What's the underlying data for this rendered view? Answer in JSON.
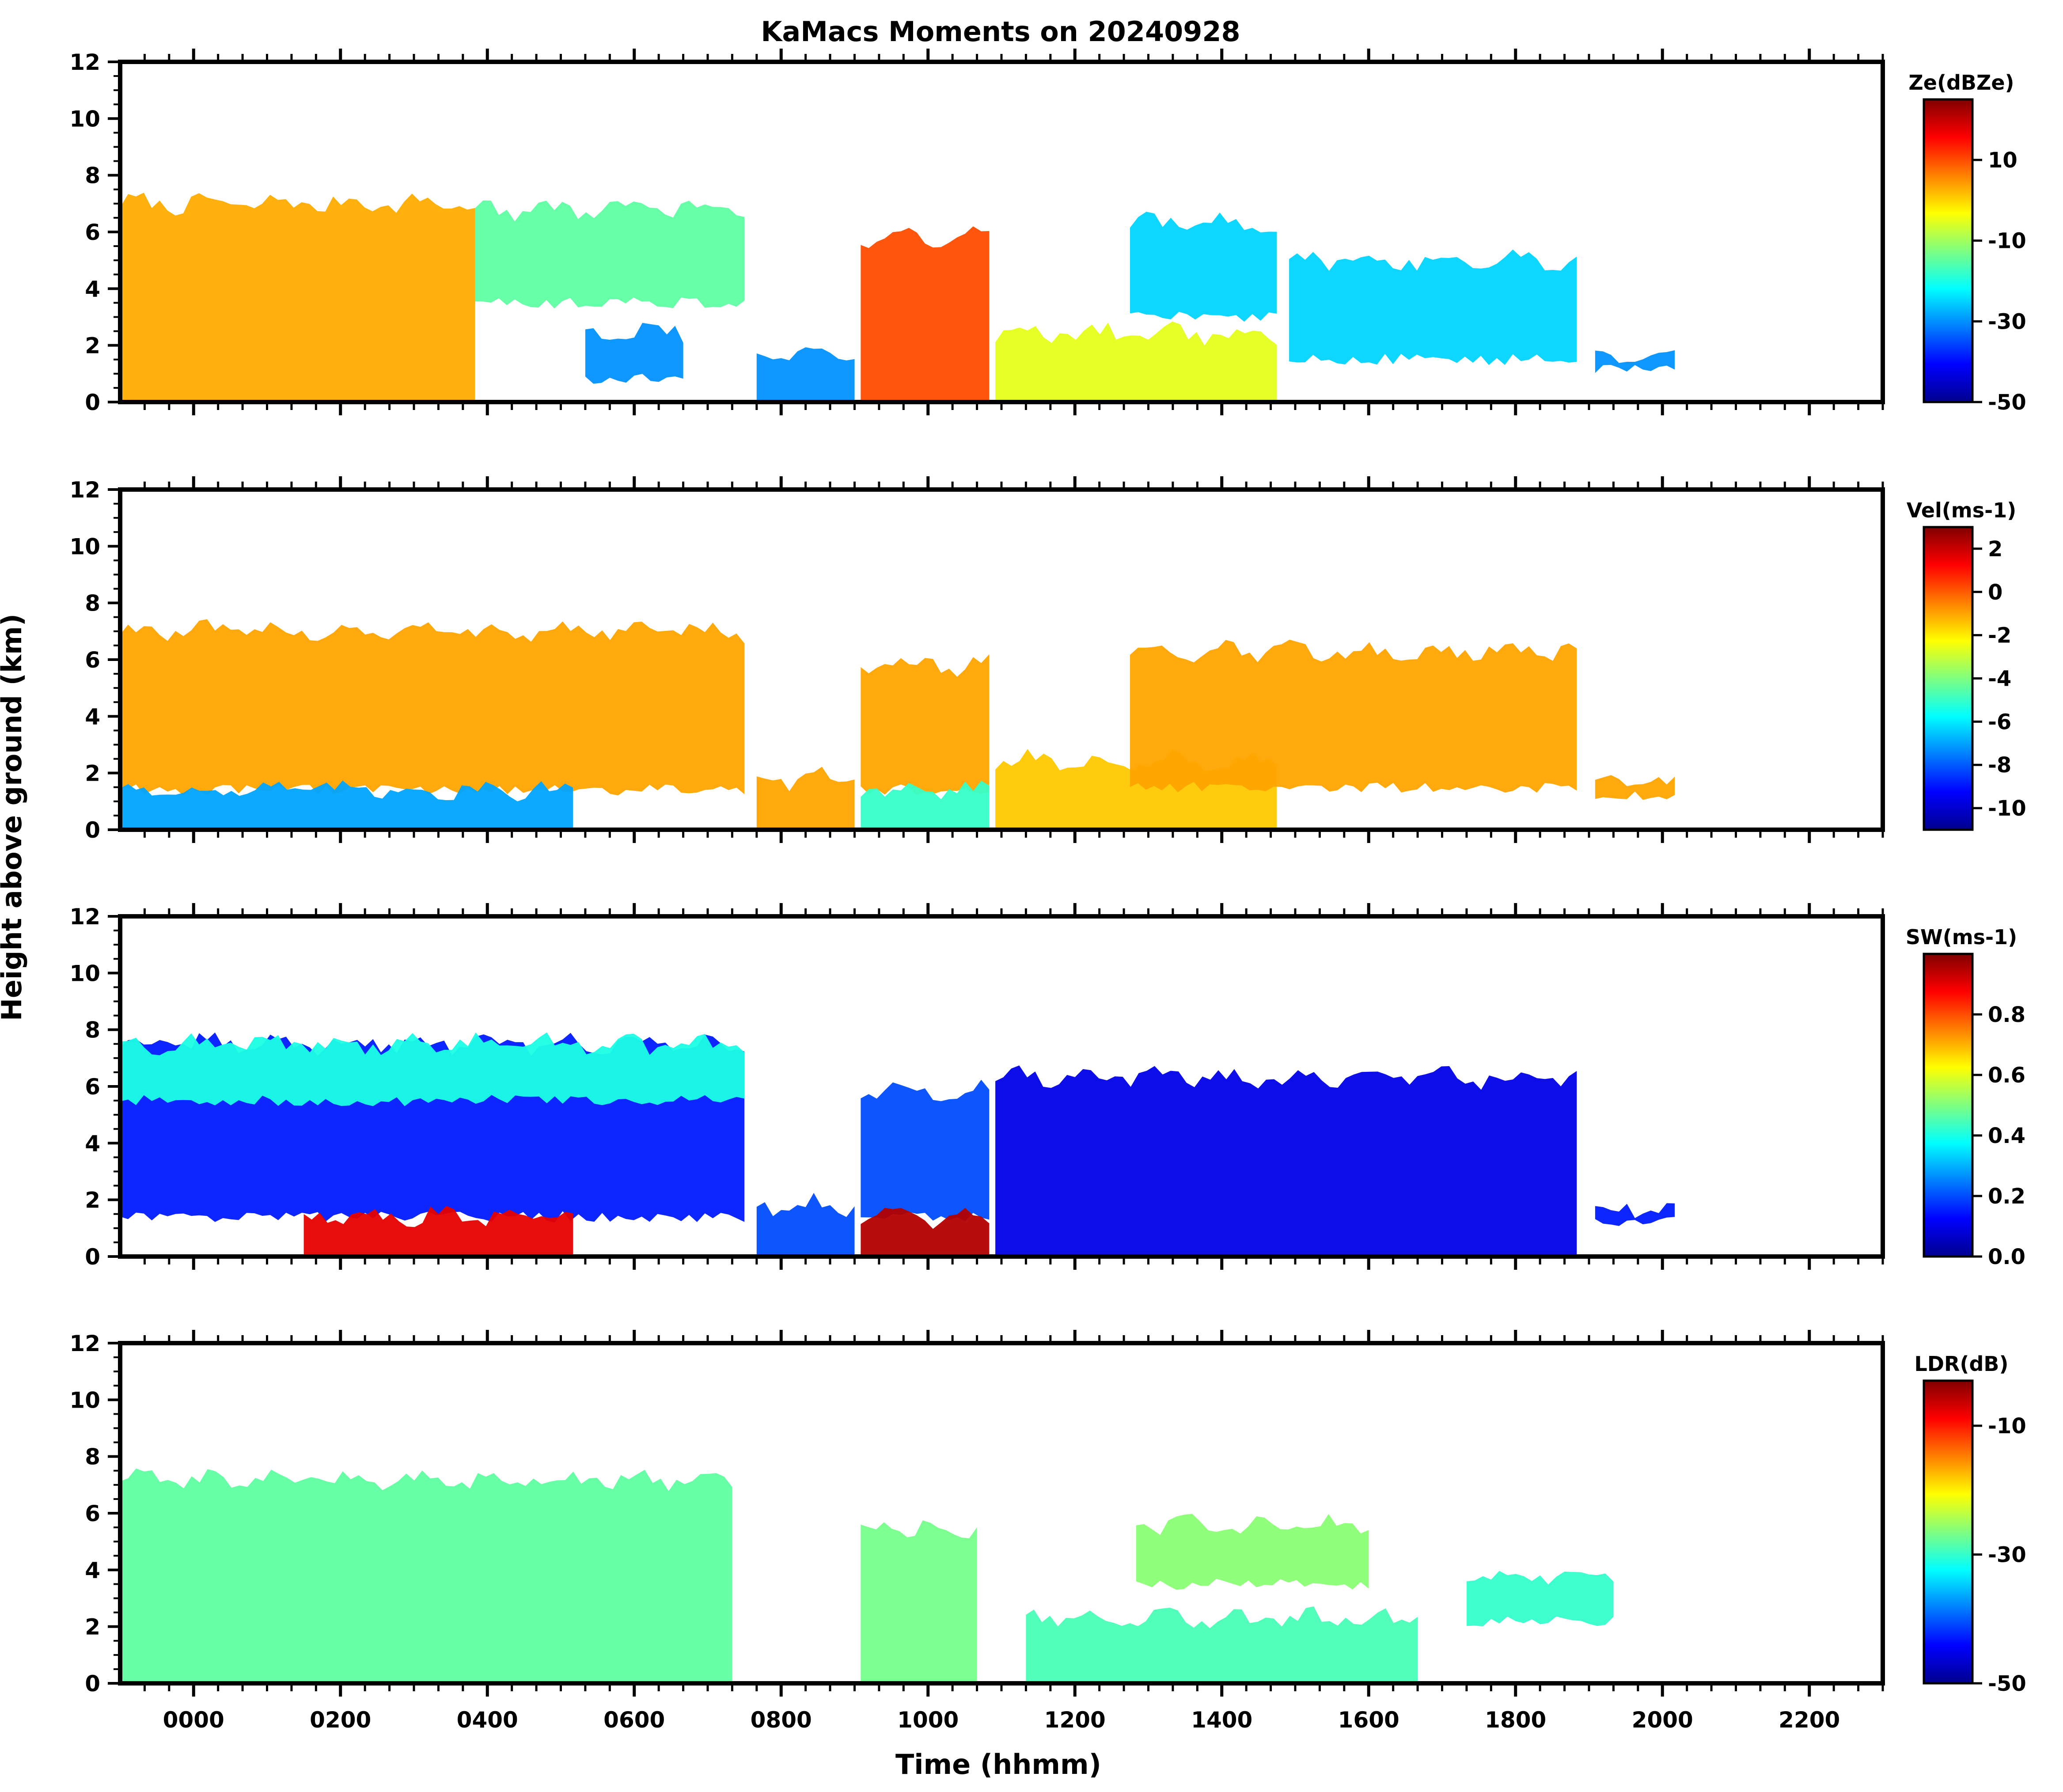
{
  "chart_data": {
    "type": "heatmap",
    "title": "KaMacs Moments on 20240928",
    "xlabel": "Time (hhmm)",
    "ylabel": "Height above ground (km)",
    "x_minutes_range": [
      -60,
      1380
    ],
    "x_ticks": [
      {
        "minutes": 0,
        "label": "0000"
      },
      {
        "minutes": 120,
        "label": "0200"
      },
      {
        "minutes": 240,
        "label": "0400"
      },
      {
        "minutes": 360,
        "label": "0600"
      },
      {
        "minutes": 480,
        "label": "0800"
      },
      {
        "minutes": 600,
        "label": "1000"
      },
      {
        "minutes": 720,
        "label": "1200"
      },
      {
        "minutes": 840,
        "label": "1400"
      },
      {
        "minutes": 960,
        "label": "1600"
      },
      {
        "minutes": 1080,
        "label": "1800"
      },
      {
        "minutes": 1200,
        "label": "2000"
      },
      {
        "minutes": 1320,
        "label": "2200"
      }
    ],
    "ylim": [
      0,
      12
    ],
    "y_ticks": [
      0,
      2,
      4,
      6,
      8,
      10,
      12
    ],
    "panels": [
      {
        "name": "reflectivity",
        "colorbar_label": "Ze(dBZe)",
        "colorbar_range": [
          -50,
          25
        ],
        "colorbar_ticks": [
          10,
          -10,
          -30,
          -50
        ],
        "cloud_regions": [
          {
            "t0": -60,
            "t1": 230,
            "top_km": 7.0,
            "base_km": 0,
            "value": 3
          },
          {
            "t0": 230,
            "t1": 450,
            "top_km": 6.8,
            "base_km": 3.5,
            "value": -15
          },
          {
            "t0": 320,
            "t1": 400,
            "top_km": 2.5,
            "base_km": 0.8,
            "value": -30
          },
          {
            "t0": 460,
            "t1": 540,
            "top_km": 1.8,
            "base_km": 0,
            "value": -30
          },
          {
            "t0": 545,
            "t1": 650,
            "top_km": 5.8,
            "base_km": 0,
            "value": 10
          },
          {
            "t0": 655,
            "t1": 885,
            "top_km": 2.4,
            "base_km": 0,
            "value": -5
          },
          {
            "t0": 765,
            "t1": 885,
            "top_km": 6.3,
            "base_km": 3.0,
            "value": -25
          },
          {
            "t0": 895,
            "t1": 1130,
            "top_km": 5.0,
            "base_km": 1.5,
            "value": -25
          },
          {
            "t0": 1145,
            "t1": 1210,
            "top_km": 1.7,
            "base_km": 1.2,
            "value": -30
          }
        ]
      },
      {
        "name": "velocity",
        "colorbar_label": "Vel(ms-1)",
        "colorbar_range": [
          -11,
          3
        ],
        "colorbar_ticks": [
          2,
          0,
          -2,
          -4,
          -6,
          -8,
          -10
        ],
        "cloud_regions": [
          {
            "t0": -60,
            "t1": 450,
            "top_km": 7.0,
            "base_km": 1.4,
            "value": -1
          },
          {
            "t0": -60,
            "t1": 310,
            "top_km": 1.4,
            "base_km": 0,
            "value": -7
          },
          {
            "t0": 460,
            "t1": 540,
            "top_km": 1.8,
            "base_km": 0,
            "value": -1
          },
          {
            "t0": 545,
            "t1": 650,
            "top_km": 5.8,
            "base_km": 1.4,
            "value": -1
          },
          {
            "t0": 545,
            "t1": 650,
            "top_km": 1.4,
            "base_km": 0,
            "value": -5
          },
          {
            "t0": 655,
            "t1": 885,
            "top_km": 2.4,
            "base_km": 0,
            "value": -1.5
          },
          {
            "t0": 765,
            "t1": 1130,
            "top_km": 6.3,
            "base_km": 1.5,
            "value": -1
          },
          {
            "t0": 1145,
            "t1": 1210,
            "top_km": 1.7,
            "base_km": 1.2,
            "value": -1
          }
        ]
      },
      {
        "name": "spectrum_width",
        "colorbar_label": "SW(ms-1)",
        "colorbar_range": [
          0.0,
          1.0
        ],
        "colorbar_ticks": [
          0.8,
          0.6,
          0.4,
          0.2,
          0.0
        ],
        "cloud_regions": [
          {
            "t0": -60,
            "t1": 450,
            "top_km": 7.5,
            "base_km": 1.4,
            "value": 0.15
          },
          {
            "t0": -60,
            "t1": 450,
            "top_km": 7.5,
            "base_km": 5.5,
            "value": 0.4
          },
          {
            "t0": 90,
            "t1": 310,
            "top_km": 1.4,
            "base_km": 0,
            "value": 0.9
          },
          {
            "t0": 460,
            "t1": 540,
            "top_km": 1.8,
            "base_km": 0,
            "value": 0.2
          },
          {
            "t0": 545,
            "t1": 650,
            "top_km": 5.8,
            "base_km": 1.4,
            "value": 0.2
          },
          {
            "t0": 545,
            "t1": 650,
            "top_km": 1.4,
            "base_km": 0,
            "value": 0.95
          },
          {
            "t0": 655,
            "t1": 1130,
            "top_km": 6.3,
            "base_km": 0,
            "value": 0.1
          },
          {
            "t0": 1145,
            "t1": 1210,
            "top_km": 1.7,
            "base_km": 1.2,
            "value": 0.15
          }
        ]
      },
      {
        "name": "ldr",
        "colorbar_label": "LDR(dB)",
        "colorbar_range": [
          -50,
          -3
        ],
        "colorbar_ticks": [
          -10,
          -30,
          -50
        ],
        "cloud_regions": [
          {
            "t0": -60,
            "t1": 440,
            "top_km": 7.2,
            "base_km": 0,
            "value": -28
          },
          {
            "t0": 545,
            "t1": 640,
            "top_km": 5.5,
            "base_km": 0,
            "value": -27
          },
          {
            "t0": 680,
            "t1": 1000,
            "top_km": 2.3,
            "base_km": 0,
            "value": -29
          },
          {
            "t0": 770,
            "t1": 960,
            "top_km": 5.6,
            "base_km": 3.5,
            "value": -26
          },
          {
            "t0": 1040,
            "t1": 1160,
            "top_km": 3.8,
            "base_km": 2.2,
            "value": -30
          }
        ]
      }
    ]
  }
}
